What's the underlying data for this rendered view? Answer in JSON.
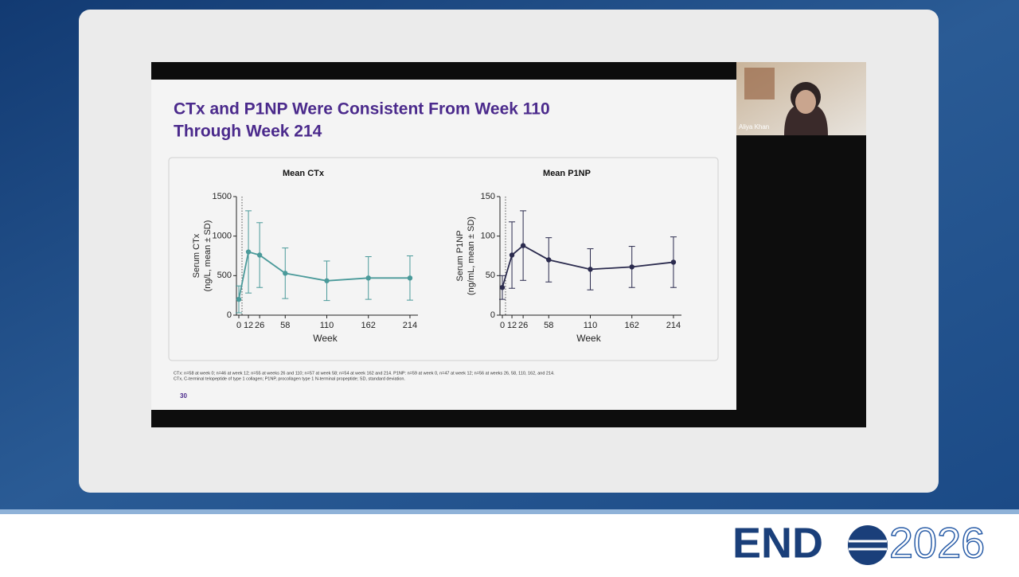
{
  "slide": {
    "title_lines": [
      "CTx and P1NP Were Consistent From Week 110",
      "Through Week 214"
    ],
    "footnotes": [
      "CTx: n=58 at week 0; n=46 at week 12; n=55 at weeks 26 and 110; n=57 at week 58; n=54 at week 162 and 214. P1NP: n=59 at week 0, n=47 at week 12; n=56 at weeks 26, 58, 110, 162, and 214.",
      "CTx, C-terminal telopeptide of type 1 collagen; P1NP, procollagen type 1 N-terminal propeptide; SD, standard deviation."
    ],
    "page_number": "30"
  },
  "speaker": {
    "name": "Aliya Khan"
  },
  "logo": {
    "left": "END",
    "right": "2026"
  },
  "chart_data": [
    {
      "type": "line",
      "title": "Mean CTx",
      "ylabel": [
        "Serum CTx",
        "(ng/L, mean ± SD)"
      ],
      "xlabel": "Week",
      "x": [
        0,
        12,
        26,
        58,
        110,
        162,
        214
      ],
      "values": [
        200,
        800,
        760,
        530,
        435,
        470,
        470
      ],
      "errors": [
        170,
        520,
        410,
        320,
        250,
        270,
        280
      ],
      "color": "#4a9a9a",
      "xlim": [
        -3,
        224
      ],
      "xticks": [
        0,
        12,
        26,
        58,
        110,
        162,
        214
      ],
      "ylim": [
        0,
        1500
      ],
      "yticks": [
        0,
        500,
        1000,
        1500
      ]
    },
    {
      "type": "line",
      "title": "Mean P1NP",
      "ylabel": [
        "Serum P1NP",
        "(ng/mL, mean ± SD)"
      ],
      "xlabel": "Week",
      "x": [
        0,
        12,
        26,
        58,
        110,
        162,
        214
      ],
      "values": [
        35,
        76,
        88,
        70,
        58,
        61,
        67
      ],
      "errors": [
        15,
        42,
        44,
        28,
        26,
        26,
        32
      ],
      "color": "#2b2b4e",
      "xlim": [
        -3,
        224
      ],
      "xticks": [
        0,
        12,
        26,
        58,
        110,
        162,
        214
      ],
      "ylim": [
        0,
        150
      ],
      "yticks": [
        0,
        50,
        100,
        150
      ]
    }
  ]
}
